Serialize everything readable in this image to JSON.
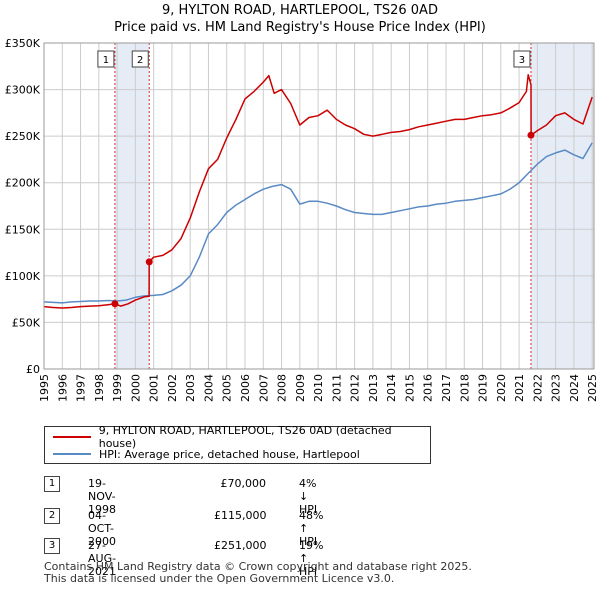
{
  "title": "9, HYLTON ROAD, HARTLEPOOL, TS26 0AD",
  "subtitle": "Price paid vs. HM Land Registry's House Price Index (HPI)",
  "colors": {
    "property": "#cc0000",
    "hpi": "#5a8ac6",
    "shade": "#dde6f3",
    "grid": "#cccccc"
  },
  "chart_data": {
    "type": "line",
    "title": "9, HYLTON ROAD, HARTLEPOOL, TS26 0AD",
    "subtitle": "Price paid vs. HM Land Registry's House Price Index (HPI)",
    "xlabel": "",
    "ylabel": "",
    "xlim": [
      1995,
      2025.1
    ],
    "ylim": [
      0,
      350000
    ],
    "x_ticks": [
      1995,
      1996,
      1997,
      1998,
      1999,
      2000,
      2001,
      2002,
      2003,
      2004,
      2005,
      2006,
      2007,
      2008,
      2009,
      2010,
      2011,
      2012,
      2013,
      2014,
      2015,
      2016,
      2017,
      2018,
      2019,
      2020,
      2021,
      2022,
      2023,
      2024,
      2025
    ],
    "y_ticks": [
      0,
      50000,
      100000,
      150000,
      200000,
      250000,
      300000,
      350000
    ],
    "y_tick_labels": [
      "£0",
      "£50K",
      "£100K",
      "£150K",
      "£200K",
      "£250K",
      "£300K",
      "£350K"
    ],
    "grid": true,
    "series": [
      {
        "name": "9, HYLTON ROAD, HARTLEPOOL, TS26 0AD (detached house)",
        "color": "#cc0000",
        "x": [
          1995.0,
          1995.5,
          1996.0,
          1996.5,
          1997.0,
          1997.5,
          1998.0,
          1998.5,
          1998.88,
          1999.2,
          1999.6,
          2000.0,
          2000.5,
          2000.75,
          2000.76,
          2001.0,
          2001.5,
          2002.0,
          2002.5,
          2003.0,
          2003.5,
          2004.0,
          2004.5,
          2005.0,
          2005.5,
          2006.0,
          2006.5,
          2007.0,
          2007.3,
          2007.6,
          2008.0,
          2008.5,
          2009.0,
          2009.5,
          2010.0,
          2010.5,
          2011.0,
          2011.5,
          2012.0,
          2012.5,
          2013.0,
          2013.5,
          2014.0,
          2014.5,
          2015.0,
          2015.5,
          2016.0,
          2016.5,
          2017.0,
          2017.5,
          2018.0,
          2018.5,
          2019.0,
          2019.5,
          2020.0,
          2020.5,
          2021.0,
          2021.4,
          2021.5,
          2021.65,
          2021.66,
          2022.0,
          2022.5,
          2023.0,
          2023.5,
          2024.0,
          2024.5,
          2025.0
        ],
        "values": [
          67000,
          66000,
          65500,
          66000,
          67000,
          67500,
          68000,
          69000,
          70000,
          67500,
          70000,
          74000,
          77500,
          78000,
          115000,
          120000,
          122000,
          128000,
          140000,
          162000,
          190000,
          215000,
          225000,
          248000,
          268000,
          290000,
          298000,
          308000,
          315000,
          296000,
          300000,
          285000,
          262000,
          270000,
          272000,
          278000,
          268000,
          262000,
          258000,
          252000,
          250000,
          252000,
          254000,
          255000,
          257000,
          260000,
          262000,
          264000,
          266000,
          268000,
          268000,
          270000,
          272000,
          273000,
          275000,
          280000,
          286000,
          298000,
          316000,
          305000,
          251000,
          256000,
          262000,
          272000,
          275000,
          268000,
          263000,
          292000
        ]
      },
      {
        "name": "HPI: Average price, detached house, Hartlepool",
        "color": "#5a8ac6",
        "x": [
          1995.0,
          1995.5,
          1996.0,
          1996.5,
          1997.0,
          1997.5,
          1998.0,
          1998.5,
          1999.0,
          1999.5,
          2000.0,
          2000.5,
          2001.0,
          2001.5,
          2002.0,
          2002.5,
          2003.0,
          2003.5,
          2004.0,
          2004.5,
          2005.0,
          2005.5,
          2006.0,
          2006.5,
          2007.0,
          2007.5,
          2008.0,
          2008.5,
          2009.0,
          2009.5,
          2010.0,
          2010.5,
          2011.0,
          2011.5,
          2012.0,
          2012.5,
          2013.0,
          2013.5,
          2014.0,
          2014.5,
          2015.0,
          2015.5,
          2016.0,
          2016.5,
          2017.0,
          2017.5,
          2018.0,
          2018.5,
          2019.0,
          2019.5,
          2020.0,
          2020.5,
          2021.0,
          2021.5,
          2022.0,
          2022.5,
          2023.0,
          2023.5,
          2024.0,
          2024.5,
          2025.0
        ],
        "values": [
          72000,
          71500,
          71000,
          72000,
          72500,
          73000,
          73000,
          73500,
          73000,
          74000,
          77000,
          78500,
          79000,
          80000,
          84000,
          90000,
          100000,
          120000,
          145000,
          155000,
          168000,
          176000,
          182000,
          188000,
          193000,
          196000,
          198000,
          193000,
          177000,
          180000,
          180000,
          178000,
          175000,
          171000,
          168000,
          167000,
          166000,
          166000,
          168000,
          170000,
          172000,
          174000,
          175000,
          177000,
          178000,
          180000,
          181000,
          182000,
          184000,
          186000,
          188000,
          193000,
          200000,
          210000,
          220000,
          228000,
          232000,
          235000,
          230000,
          226000,
          243000
        ]
      }
    ],
    "sales": [
      {
        "label": "1",
        "x": 1998.88,
        "price": 70000
      },
      {
        "label": "2",
        "x": 2000.76,
        "price": 115000
      },
      {
        "label": "3",
        "x": 2021.65,
        "price": 251000
      }
    ],
    "shaded_spans": [
      [
        1998.88,
        2000.76
      ],
      [
        2021.65,
        2025.1
      ]
    ],
    "legend": [
      "9, HYLTON ROAD, HARTLEPOOL, TS26 0AD (detached house)",
      "HPI: Average price, detached house, Hartlepool"
    ]
  },
  "legend": {
    "property_label": "9, HYLTON ROAD, HARTLEPOOL, TS26 0AD (detached house)",
    "hpi_label": "HPI: Average price, detached house, Hartlepool"
  },
  "transactions": [
    {
      "num": "1",
      "date": "19-NOV-1998",
      "price": "£70,000",
      "diff": "4% ↓ HPI"
    },
    {
      "num": "2",
      "date": "04-OCT-2000",
      "price": "£115,000",
      "diff": "48% ↑ HPI"
    },
    {
      "num": "3",
      "date": "27-AUG-2021",
      "price": "£251,000",
      "diff": "19% ↑ HPI"
    }
  ],
  "footer": {
    "line1": "Contains HM Land Registry data © Crown copyright and database right 2025.",
    "line2": "This data is licensed under the Open Government Licence v3.0."
  }
}
